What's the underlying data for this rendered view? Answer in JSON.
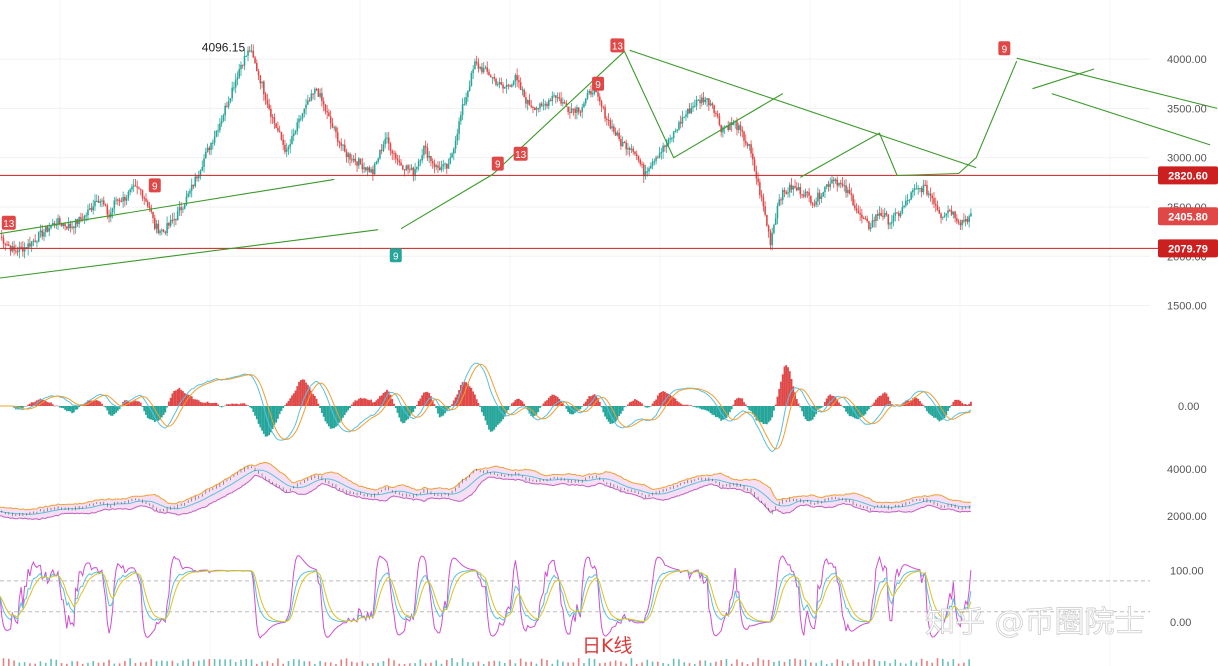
{
  "chart_data": {
    "type": "candlestick",
    "title": "日K线",
    "watermark": "知乎 @币圈院士",
    "colors": {
      "up": "#26a69a",
      "down": "#e04848",
      "level_line": "#cc1f1f",
      "trend_line": "#3a9a2a",
      "marker_red": "#e04848",
      "marker_green": "#26a69a"
    },
    "main": {
      "price_ticks": [
        "4000.00",
        "3500.00",
        "3000.00",
        "2500.00",
        "2000.00",
        "1500.00"
      ],
      "ylim": [
        1100,
        4600
      ],
      "levels": [
        {
          "label": "2820.60",
          "value": 2820.6,
          "color": "#cc1f1f"
        },
        {
          "label": "2079.79",
          "value": 2079.79,
          "color": "#cc1f1f"
        }
      ],
      "current_price": {
        "label": "2405.80",
        "value": 2405.8,
        "color": "#e04848"
      },
      "high_annotation": {
        "label": "4096.15",
        "value": 4096.15
      },
      "anchor_points": [
        [
          0,
          2200
        ],
        [
          8,
          2050
        ],
        [
          15,
          2100
        ],
        [
          25,
          2250
        ],
        [
          32,
          2350
        ],
        [
          40,
          2300
        ],
        [
          48,
          2400
        ],
        [
          52,
          2500
        ],
        [
          55,
          2600
        ],
        [
          58,
          2550
        ],
        [
          62,
          2400
        ],
        [
          66,
          2580
        ],
        [
          70,
          2580
        ],
        [
          76,
          2680
        ],
        [
          80,
          2670
        ],
        [
          85,
          2500
        ],
        [
          88,
          2300
        ],
        [
          93,
          2250
        ],
        [
          100,
          2400
        ],
        [
          108,
          2650
        ],
        [
          115,
          2950
        ],
        [
          120,
          3150
        ],
        [
          126,
          3400
        ],
        [
          132,
          3700
        ],
        [
          137,
          3950
        ],
        [
          142,
          4096
        ],
        [
          147,
          3850
        ],
        [
          155,
          3400
        ],
        [
          163,
          3050
        ],
        [
          172,
          3450
        ],
        [
          180,
          3700
        ],
        [
          188,
          3350
        ],
        [
          196,
          3050
        ],
        [
          204,
          2950
        ],
        [
          212,
          2850
        ],
        [
          219,
          3200
        ],
        [
          227,
          2950
        ],
        [
          235,
          2850
        ],
        [
          241,
          3100
        ],
        [
          248,
          2900
        ],
        [
          255,
          2900
        ],
        [
          263,
          3500
        ],
        [
          270,
          3950
        ],
        [
          278,
          3850
        ],
        [
          286,
          3700
        ],
        [
          293,
          3800
        ],
        [
          300,
          3550
        ],
        [
          308,
          3500
        ],
        [
          315,
          3650
        ],
        [
          323,
          3500
        ],
        [
          330,
          3500
        ],
        [
          337,
          3700
        ],
        [
          345,
          3400
        ],
        [
          353,
          3150
        ],
        [
          360,
          3100
        ],
        [
          366,
          2850
        ],
        [
          372,
          3000
        ],
        [
          380,
          3150
        ],
        [
          388,
          3400
        ],
        [
          395,
          3550
        ],
        [
          400,
          3600
        ],
        [
          405,
          3550
        ],
        [
          410,
          3300
        ],
        [
          418,
          3350
        ],
        [
          426,
          3100
        ],
        [
          430,
          2800
        ],
        [
          434,
          2500
        ],
        [
          438,
          2150
        ],
        [
          443,
          2600
        ],
        [
          450,
          2700
        ],
        [
          457,
          2650
        ],
        [
          463,
          2550
        ],
        [
          469,
          2700
        ],
        [
          474,
          2800
        ],
        [
          479,
          2700
        ],
        [
          484,
          2600
        ],
        [
          489,
          2400
        ],
        [
          494,
          2300
        ],
        [
          500,
          2450
        ],
        [
          506,
          2350
        ],
        [
          512,
          2450
        ],
        [
          519,
          2650
        ],
        [
          525,
          2700
        ],
        [
          530,
          2600
        ],
        [
          535,
          2420
        ],
        [
          540,
          2480
        ],
        [
          546,
          2350
        ],
        [
          552,
          2406
        ]
      ],
      "trend_lines": [
        {
          "points": [
            [
              0,
              2230
            ],
            [
              190,
              2780
            ]
          ],
          "color": "#3a9a2a"
        },
        {
          "points": [
            [
              0,
              1780
            ],
            [
              215,
              2270
            ]
          ],
          "color": "#3a9a2a"
        },
        {
          "points": [
            [
              228,
              2280
            ],
            [
              280,
              2830
            ],
            [
              355,
              4080
            ],
            [
              383,
              3000
            ],
            [
              445,
              3650
            ]
          ],
          "color": "#3a9a2a"
        },
        {
          "points": [
            [
              358,
              4090
            ],
            [
              555,
              2900
            ]
          ],
          "color": "#3a9a2a"
        },
        {
          "points": [
            [
              455,
              2800
            ],
            [
              500,
              3250
            ],
            [
              510,
              2820
            ],
            [
              545,
              2840
            ],
            [
              555,
              3000
            ],
            [
              578,
              3980
            ]
          ],
          "color": "#3a9a2a"
        },
        {
          "points": [
            [
              578,
              4010
            ],
            [
              692,
              3500
            ]
          ],
          "color": "#3a9a2a"
        },
        {
          "points": [
            [
              587,
              3700
            ],
            [
              622,
              3900
            ]
          ],
          "color": "#3a9a2a"
        },
        {
          "points": [
            [
              598,
              3650
            ],
            [
              688,
              3130
            ]
          ],
          "color": "#3a9a2a"
        },
        {
          "points": [
            [
              695,
              2820
            ],
            [
              745,
              3600
            ],
            [
              752,
              3080
            ],
            [
              775,
              3330
            ]
          ],
          "color": "#3a9a2a"
        },
        {
          "points": [
            [
              788,
              2090
            ],
            [
              845,
              2830
            ]
          ],
          "color": "#3a9a2a"
        },
        {
          "points": [
            [
              845,
              2830
            ],
            [
              880,
              2160
            ],
            [
              945,
              2770
            ]
          ],
          "color": "#6a2b2b"
        }
      ],
      "markers": [
        {
          "label": "13",
          "x": 5,
          "value": 2340,
          "color": "#e04848"
        },
        {
          "label": "9",
          "x": 88,
          "value": 2720,
          "color": "#e04848"
        },
        {
          "label": "9",
          "x": 225,
          "value": 2010,
          "color": "#26a69a"
        },
        {
          "label": "9",
          "x": 283,
          "value": 2940,
          "color": "#e04848"
        },
        {
          "label": "13",
          "x": 296,
          "value": 3040,
          "color": "#e04848"
        },
        {
          "label": "9",
          "x": 340,
          "value": 3750,
          "color": "#e04848"
        },
        {
          "label": "13",
          "x": 351,
          "value": 4140,
          "color": "#e04848"
        },
        {
          "label": "9",
          "x": 571,
          "value": 4110,
          "color": "#e04848"
        },
        {
          "label": "9",
          "x": 732,
          "value": 3620,
          "color": "#e04848"
        },
        {
          "label": "13",
          "x": 745,
          "value": 3640,
          "color": "#e04848"
        },
        {
          "label": "9",
          "x": 796,
          "value": 2220,
          "color": "#26a69a"
        }
      ]
    },
    "macd": {
      "zero_label": "0.00",
      "ylim": [
        -1,
        1
      ]
    },
    "bands": {
      "ticks": [
        "4000.00",
        "2000.00"
      ],
      "ylim": [
        1200,
        4600
      ]
    },
    "kdj": {
      "ticks": [
        "100.00",
        "0.00"
      ],
      "ylim": [
        -35,
        140
      ],
      "guides": [
        80,
        20
      ]
    }
  }
}
